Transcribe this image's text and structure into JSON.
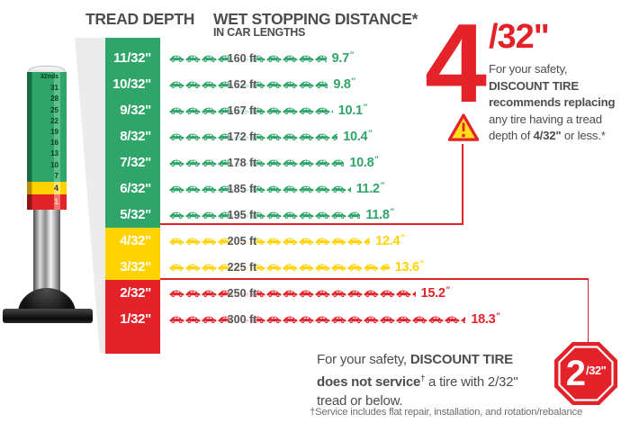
{
  "header": {
    "tread_depth": "TREAD DEPTH",
    "wet_title": "WET STOPPING DISTANCE*",
    "wet_subtitle": "IN CAR LENGTHS"
  },
  "rows": [
    {
      "depth": "11/32\"",
      "distance": "160 ft",
      "lengths": 9.7,
      "lengths_label": "9.7",
      "zone": "green"
    },
    {
      "depth": "10/32\"",
      "distance": "162 ft",
      "lengths": 9.8,
      "lengths_label": "9.8",
      "zone": "green"
    },
    {
      "depth": "9/32\"",
      "distance": "167 ft",
      "lengths": 10.1,
      "lengths_label": "10.1",
      "zone": "green"
    },
    {
      "depth": "8/32\"",
      "distance": "172 ft",
      "lengths": 10.4,
      "lengths_label": "10.4",
      "zone": "green"
    },
    {
      "depth": "7/32\"",
      "distance": "178 ft",
      "lengths": 10.8,
      "lengths_label": "10.8",
      "zone": "green"
    },
    {
      "depth": "6/32\"",
      "distance": "185 ft",
      "lengths": 11.2,
      "lengths_label": "11.2",
      "zone": "green"
    },
    {
      "depth": "5/32\"",
      "distance": "195 ft",
      "lengths": 11.8,
      "lengths_label": "11.8",
      "zone": "green"
    },
    {
      "depth": "4/32\"",
      "distance": "205 ft",
      "lengths": 12.4,
      "lengths_label": "12.4",
      "zone": "yellow"
    },
    {
      "depth": "3/32\"",
      "distance": "225 ft",
      "lengths": 13.6,
      "lengths_label": "13.6",
      "zone": "yellow"
    },
    {
      "depth": "2/32\"",
      "distance": "250 ft",
      "lengths": 15.2,
      "lengths_label": "15.2",
      "zone": "red"
    },
    {
      "depth": "1/32\"",
      "distance": "300 ft",
      "lengths": 18.3,
      "lengths_label": "18.3",
      "zone": "red"
    }
  ],
  "units": {
    "prime": "″"
  },
  "recommend": {
    "big_digit": "4",
    "fraction": "/32\"",
    "line1": "For your safety,",
    "line2": "DISCOUNT TIRE",
    "line3": "recommends replacing",
    "line4": "any tire having a tread",
    "line5a": "depth of ",
    "line5b": "4/32\"",
    "line5c": " or less.*"
  },
  "warning_icon": "exclamation-triangle",
  "stop_sign": {
    "big_digit": "2",
    "fraction": "/32\""
  },
  "notice": {
    "line1a": "For your safety, ",
    "line1b": "DISCOUNT TIRE",
    "line2a": "does not service",
    "line2b": "†",
    "line2c": " a tire with 2/32\"",
    "line3": "tread or below."
  },
  "footnote": "†Service includes flat repair, installation, and rotation/rebalance",
  "gauge": {
    "top_label": "32nds",
    "green_scale": [
      "31",
      "28",
      "25",
      "22",
      "19",
      "16",
      "13",
      "10",
      "7"
    ],
    "yellow_value": "4",
    "red_value": "1"
  },
  "colors": {
    "green": "#2fa56a",
    "yellow": "#ffd200",
    "red": "#e4222a",
    "text_gray": "#4d4d4f",
    "ft_gray": "#55565a"
  },
  "chart_data": {
    "type": "bar",
    "title": "WET STOPPING DISTANCE* IN CAR LENGTHS",
    "xlabel": "TREAD DEPTH",
    "categories": [
      "11/32\"",
      "10/32\"",
      "9/32\"",
      "8/32\"",
      "7/32\"",
      "6/32\"",
      "5/32\"",
      "4/32\"",
      "3/32\"",
      "2/32\"",
      "1/32\""
    ],
    "series": [
      {
        "name": "Wet stopping distance (ft)",
        "values": [
          160,
          162,
          167,
          172,
          178,
          185,
          195,
          205,
          225,
          250,
          300
        ]
      },
      {
        "name": "Wet stopping distance (car lengths)",
        "values": [
          9.7,
          9.8,
          10.1,
          10.4,
          10.8,
          11.2,
          11.8,
          12.4,
          13.6,
          15.2,
          18.3
        ]
      }
    ],
    "zones": {
      "green": [
        "11/32\"",
        "10/32\"",
        "9/32\"",
        "8/32\"",
        "7/32\"",
        "6/32\"",
        "5/32\""
      ],
      "yellow": [
        "4/32\"",
        "3/32\""
      ],
      "red": [
        "2/32\"",
        "1/32\""
      ]
    },
    "legend_position": "none",
    "grid": false
  }
}
